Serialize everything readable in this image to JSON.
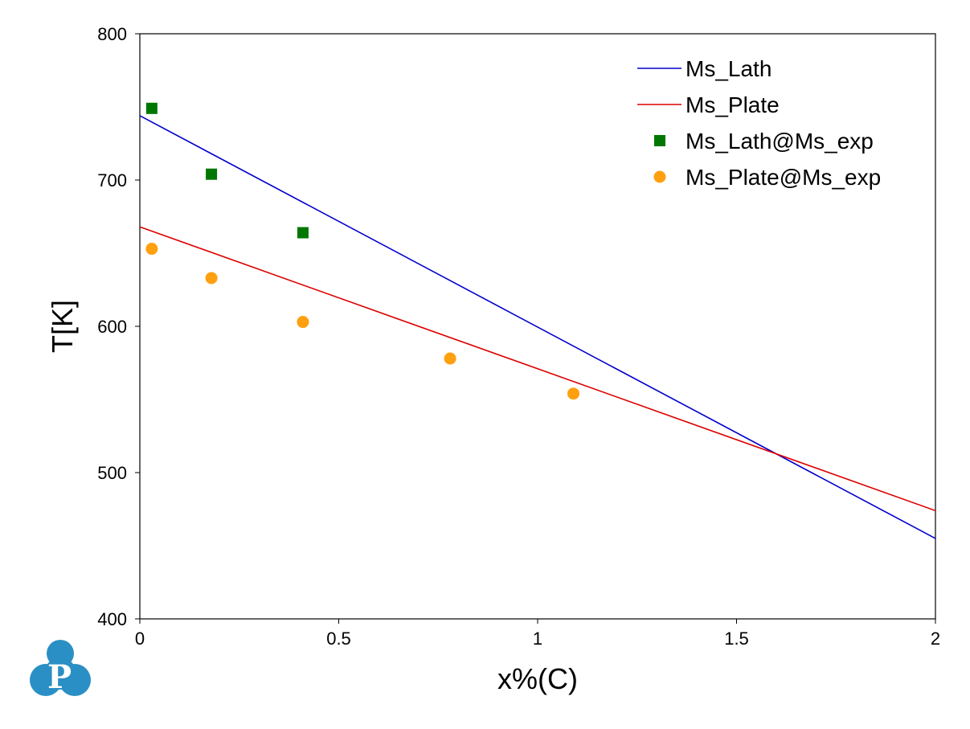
{
  "chart_data": {
    "type": "line",
    "title": "",
    "xlabel": "x%(C)",
    "ylabel": "T[K]",
    "xlim": [
      0,
      2
    ],
    "ylim": [
      400,
      800
    ],
    "xticks": [
      0,
      0.5,
      1,
      1.5,
      2
    ],
    "xtick_labels": [
      "0",
      "0.5",
      "1",
      "1.5",
      "2"
    ],
    "yticks": [
      400,
      500,
      600,
      700,
      800
    ],
    "ytick_labels": [
      "400",
      "500",
      "600",
      "700",
      "800"
    ],
    "grid": false,
    "legend_position": "top-right",
    "series": [
      {
        "name": "Ms_Lath",
        "kind": "line",
        "color": "#0000cc",
        "x": [
          0,
          2
        ],
        "y": [
          744,
          455
        ]
      },
      {
        "name": "Ms_Plate",
        "kind": "line",
        "color": "#dd0000",
        "x": [
          0,
          2
        ],
        "y": [
          668,
          474
        ]
      },
      {
        "name": "Ms_Lath@Ms_exp",
        "kind": "scatter",
        "marker": "square",
        "color": "#007700",
        "x": [
          0.03,
          0.18,
          0.41
        ],
        "y": [
          749,
          704,
          664
        ]
      },
      {
        "name": "Ms_Plate@Ms_exp",
        "kind": "scatter",
        "marker": "circle",
        "color": "#ffa010",
        "x": [
          0.03,
          0.18,
          0.41,
          0.78,
          1.09
        ],
        "y": [
          653,
          633,
          603,
          578,
          554
        ]
      }
    ]
  },
  "logo": {
    "letter": "P",
    "color": "#2a8fc4"
  }
}
